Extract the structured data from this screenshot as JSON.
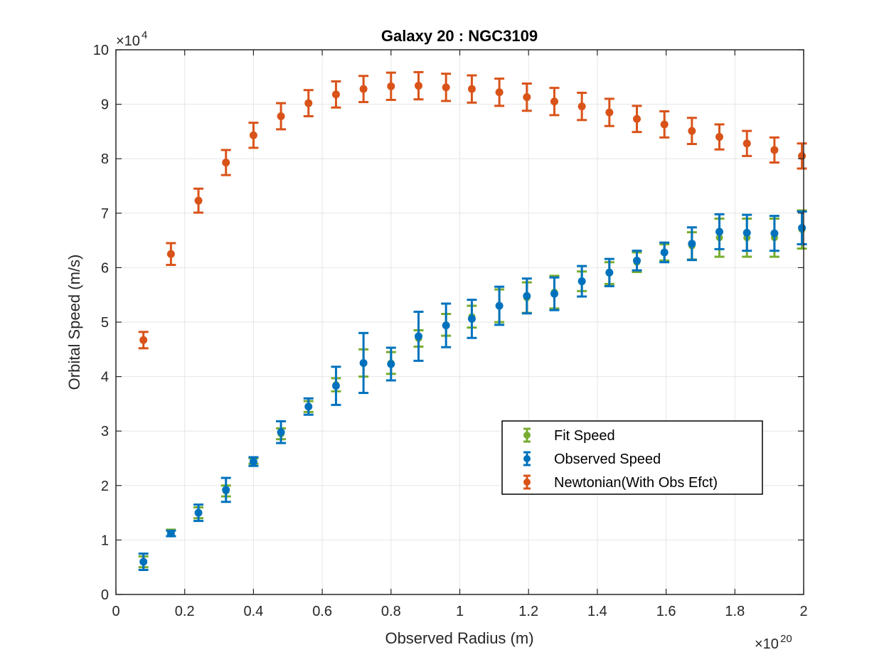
{
  "chart_data": {
    "type": "scatter",
    "title": "Galaxy 20 : NGC3109",
    "xlabel": "Observed Radius (m)",
    "ylabel": "Orbital Speed (m/s)",
    "x_exponent_label": "×10",
    "x_exponent": "20",
    "y_exponent_label": "×10",
    "y_exponent": "4",
    "xlim": [
      0,
      2
    ],
    "ylim": [
      0,
      10
    ],
    "x_ticks": [
      0,
      0.2,
      0.4,
      0.6,
      0.8,
      1,
      1.2,
      1.4,
      1.6,
      1.8,
      2
    ],
    "x_tick_labels": [
      "0",
      "0.2",
      "0.4",
      "0.6",
      "0.8",
      "1",
      "1.2",
      "1.4",
      "1.6",
      "1.8",
      "2"
    ],
    "y_ticks": [
      0,
      1,
      2,
      3,
      4,
      5,
      6,
      7,
      8,
      9,
      10
    ],
    "y_tick_labels": [
      "0",
      "1",
      "2",
      "3",
      "4",
      "5",
      "6",
      "7",
      "8",
      "9",
      "10"
    ],
    "grid": true,
    "legend_position": "lower-right",
    "x": [
      0.08,
      0.16,
      0.24,
      0.32,
      0.4,
      0.48,
      0.56,
      0.64,
      0.72,
      0.8,
      0.88,
      0.96,
      1.035,
      1.115,
      1.195,
      1.275,
      1.355,
      1.435,
      1.515,
      1.595,
      1.675,
      1.755,
      1.835,
      1.915,
      1.995
    ],
    "series": [
      {
        "name": "Fit Speed",
        "color": "#77ac30",
        "y": [
          0.6,
          1.13,
          1.5,
          1.9,
          2.45,
          2.95,
          3.45,
          3.85,
          4.25,
          4.25,
          4.7,
          4.95,
          5.1,
          5.3,
          5.45,
          5.55,
          5.75,
          5.9,
          6.1,
          6.28,
          6.4,
          6.55,
          6.55,
          6.55,
          6.7
        ],
        "err": [
          0.1,
          0.06,
          0.1,
          0.1,
          0.05,
          0.1,
          0.1,
          0.12,
          0.25,
          0.2,
          0.15,
          0.2,
          0.2,
          0.3,
          0.28,
          0.3,
          0.18,
          0.2,
          0.18,
          0.15,
          0.25,
          0.35,
          0.35,
          0.35,
          0.35
        ]
      },
      {
        "name": "Observed Speed",
        "color": "#0072bd",
        "y": [
          0.6,
          1.12,
          1.5,
          1.92,
          2.44,
          2.98,
          3.45,
          3.83,
          4.25,
          4.23,
          4.74,
          4.94,
          5.06,
          5.3,
          5.48,
          5.52,
          5.75,
          5.91,
          6.13,
          6.28,
          6.44,
          6.66,
          6.64,
          6.63,
          6.73
        ]
      },
      {
        "name": "Newtonian(With Obs Efct)",
        "color": "#d95319",
        "y": [
          4.67,
          6.25,
          7.23,
          7.93,
          8.43,
          8.78,
          9.02,
          9.18,
          9.28,
          9.33,
          9.34,
          9.31,
          9.28,
          9.22,
          9.13,
          9.05,
          8.96,
          8.85,
          8.73,
          8.63,
          8.51,
          8.4,
          8.28,
          8.16,
          8.05
        ]
      }
    ],
    "observed_err": [
      0.15,
      0.05,
      0.15,
      0.22,
      0.08,
      0.2,
      0.15,
      0.35,
      0.55,
      0.3,
      0.45,
      0.4,
      0.35,
      0.35,
      0.32,
      0.3,
      0.28,
      0.25,
      0.18,
      0.18,
      0.3,
      0.32,
      0.33,
      0.32,
      0.3
    ],
    "newtonian_err": [
      0.15,
      0.2,
      0.22,
      0.23,
      0.23,
      0.24,
      0.24,
      0.24,
      0.24,
      0.25,
      0.25,
      0.25,
      0.25,
      0.25,
      0.25,
      0.25,
      0.25,
      0.25,
      0.24,
      0.24,
      0.24,
      0.23,
      0.23,
      0.23,
      0.23
    ]
  }
}
